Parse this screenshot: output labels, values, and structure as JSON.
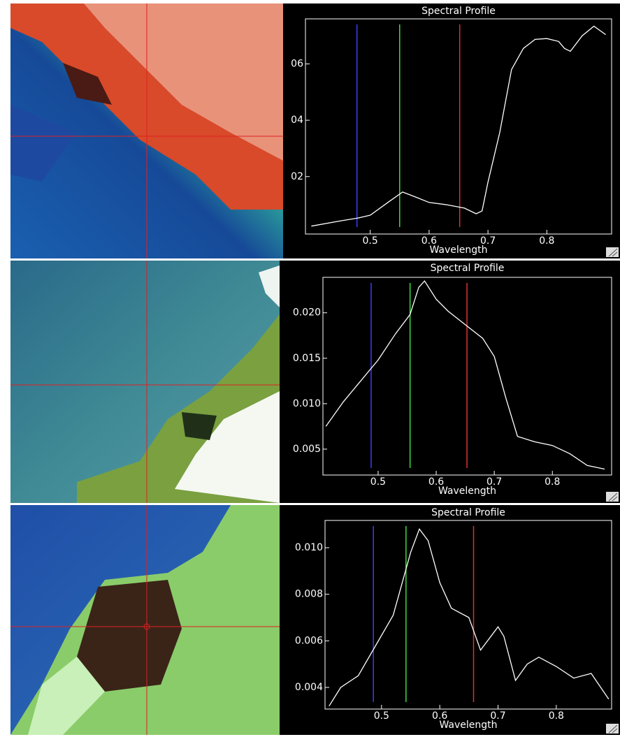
{
  "chart_data": [
    {
      "type": "line",
      "title": "Spectral Profile",
      "x_label": "Wavelength",
      "x": [
        0.4,
        0.45,
        0.48,
        0.5,
        0.53,
        0.555,
        0.58,
        0.6,
        0.63,
        0.66,
        0.68,
        0.69,
        0.7,
        0.72,
        0.74,
        0.76,
        0.78,
        0.8,
        0.82,
        0.83,
        0.84,
        0.86,
        0.88,
        0.9
      ],
      "series": [
        {
          "color": "#ffffff",
          "values": [
            0.0024,
            0.0043,
            0.0053,
            0.0063,
            0.0108,
            0.0145,
            0.0125,
            0.0108,
            0.01,
            0.0088,
            0.0068,
            0.0078,
            0.018,
            0.0357,
            0.058,
            0.0655,
            0.0687,
            0.069,
            0.068,
            0.0655,
            0.0645,
            0.07,
            0.0734,
            0.0704
          ]
        }
      ],
      "markers": [
        {
          "color": "#3c3cff",
          "x": 0.4775
        },
        {
          "color": "#3cdc3c",
          "x": 0.55
        },
        {
          "color": "#e03030",
          "x": 0.652
        }
      ],
      "xlim": [
        0.39,
        0.91
      ],
      "ylim": [
        -0.0004,
        0.076
      ],
      "xticks": [
        0.5,
        0.6,
        0.7,
        0.8
      ],
      "yticks": [
        {
          "value": 0.02,
          "label": "02"
        },
        {
          "value": 0.04,
          "label": "04"
        },
        {
          "value": 0.06,
          "label": "06"
        }
      ]
    },
    {
      "type": "line",
      "title": "Spectral Profile",
      "x_label": "Wavelength",
      "x": [
        0.41,
        0.44,
        0.47,
        0.5,
        0.53,
        0.555,
        0.57,
        0.58,
        0.6,
        0.62,
        0.65,
        0.68,
        0.7,
        0.72,
        0.74,
        0.77,
        0.8,
        0.83,
        0.86,
        0.89
      ],
      "series": [
        {
          "color": "#ffffff",
          "values": [
            0.0075,
            0.0102,
            0.0125,
            0.0148,
            0.0177,
            0.0198,
            0.0228,
            0.0235,
            0.0215,
            0.0202,
            0.0187,
            0.0172,
            0.0152,
            0.0106,
            0.0064,
            0.0058,
            0.0054,
            0.0045,
            0.0032,
            0.0028
          ]
        }
      ],
      "markers": [
        {
          "color": "#3c3cff",
          "x": 0.488
        },
        {
          "color": "#3cdc3c",
          "x": 0.555
        },
        {
          "color": "#e03030",
          "x": 0.653
        }
      ],
      "xlim": [
        0.405,
        0.902
      ],
      "ylim": [
        0.00215,
        0.0239
      ],
      "xticks": [
        0.5,
        0.6,
        0.7,
        0.8
      ],
      "yticks": [
        0.005,
        {
          "value": 0.01,
          "label": "0.010"
        },
        0.015,
        {
          "value": 0.02,
          "label": "0.020"
        }
      ]
    },
    {
      "type": "line",
      "title": "Spectral Profile",
      "x_label": "Wavelength",
      "x": [
        0.41,
        0.43,
        0.46,
        0.49,
        0.52,
        0.55,
        0.565,
        0.58,
        0.6,
        0.62,
        0.65,
        0.67,
        0.7,
        0.71,
        0.73,
        0.75,
        0.77,
        0.8,
        0.83,
        0.86,
        0.89
      ],
      "series": [
        {
          "color": "#ffffff",
          "values": [
            0.0032,
            0.004,
            0.0045,
            0.0058,
            0.0071,
            0.0098,
            0.0108,
            0.0103,
            0.0085,
            0.0074,
            0.007,
            0.0056,
            0.0066,
            0.0062,
            0.0043,
            0.005,
            0.0053,
            0.0049,
            0.0044,
            0.0046,
            0.0035
          ]
        }
      ],
      "markers": [
        {
          "color": "#3c3cff",
          "x": 0.486
        },
        {
          "color": "#3cdc3c",
          "x": 0.542
        },
        {
          "color": "#e03030",
          "x": 0.658
        }
      ],
      "xlim": [
        0.403,
        0.895
      ],
      "ylim": [
        0.00307,
        0.01117
      ],
      "xticks": [
        0.5,
        0.6,
        0.7,
        0.8
      ],
      "yticks": [
        0.004,
        0.006,
        0.008,
        {
          "value": 0.01,
          "label": "0.010"
        }
      ]
    }
  ]
}
